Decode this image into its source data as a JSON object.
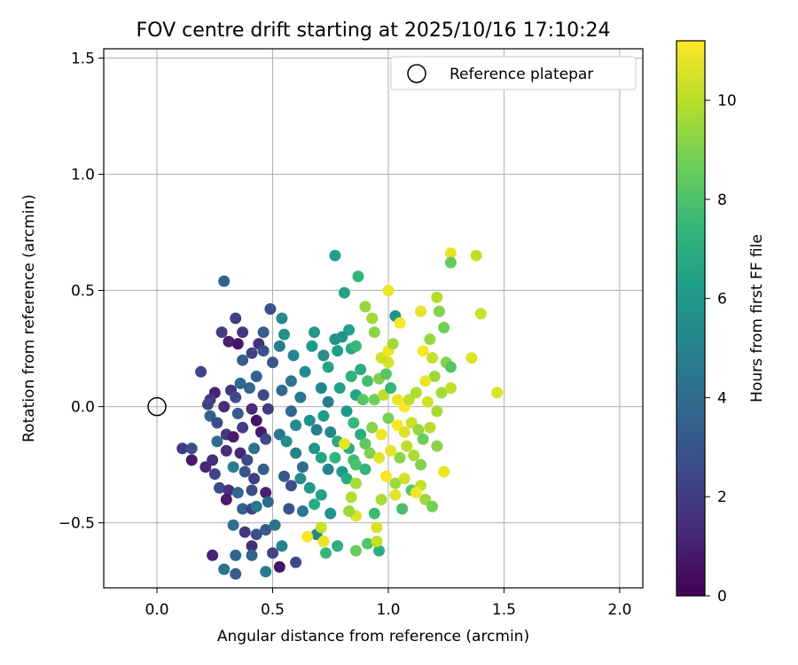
{
  "chart_data": {
    "type": "scatter",
    "title": "FOV centre drift starting at 2025/10/16 17:10:24",
    "xlabel": "Angular distance from reference (arcmin)",
    "ylabel": "Rotation from reference (arcmin)",
    "xlim": [
      -0.23,
      2.1
    ],
    "ylim": [
      -0.78,
      1.54
    ],
    "x_ticks": [
      0.0,
      0.5,
      1.0,
      1.5,
      2.0
    ],
    "x_tick_labels": [
      "0.0",
      "0.5",
      "1.0",
      "1.5",
      "2.0"
    ],
    "y_ticks": [
      -0.5,
      0.0,
      0.5,
      1.0,
      1.5
    ],
    "y_tick_labels": [
      "−0.5",
      "0.0",
      "0.5",
      "1.0",
      "1.5"
    ],
    "grid": true,
    "legend": {
      "position": "top-right",
      "entries": [
        "Reference platepar"
      ]
    },
    "reference_point": {
      "x": 0.0,
      "y": 0.0,
      "label": "Reference platepar"
    },
    "colorbar": {
      "label": "Hours from first FF file",
      "colormap": "viridis",
      "range": [
        0,
        11.2
      ],
      "ticks": [
        0,
        2,
        4,
        6,
        8,
        10
      ],
      "tick_labels": [
        "0",
        "2",
        "4",
        "6",
        "8",
        "10"
      ]
    },
    "colors": {
      "viridis": [
        "#440154",
        "#482878",
        "#3e4989",
        "#31688e",
        "#26828e",
        "#1f9e89",
        "#35b779",
        "#6ece58",
        "#b5de2b",
        "#fde725"
      ]
    },
    "points": [
      [
        0.29,
        0.54,
        3.5
      ],
      [
        0.49,
        0.42,
        2.9
      ],
      [
        0.34,
        0.38,
        2.2
      ],
      [
        0.28,
        0.32,
        2.1
      ],
      [
        0.37,
        0.32,
        1.9
      ],
      [
        0.31,
        0.28,
        1.0
      ],
      [
        0.35,
        0.27,
        0.7
      ],
      [
        0.44,
        0.27,
        1.5
      ],
      [
        0.46,
        0.32,
        3.2
      ],
      [
        0.19,
        0.15,
        2.4
      ],
      [
        0.37,
        0.2,
        3.3
      ],
      [
        0.41,
        0.23,
        2.2
      ],
      [
        0.46,
        0.24,
        2.8
      ],
      [
        0.5,
        0.19,
        3.1
      ],
      [
        0.36,
        0.1,
        3.8
      ],
      [
        0.32,
        0.07,
        1.8
      ],
      [
        0.25,
        0.06,
        1.1
      ],
      [
        0.23,
        0.03,
        1.9
      ],
      [
        0.22,
        0.01,
        2.3
      ],
      [
        0.29,
        0.0,
        1.4
      ],
      [
        0.34,
        0.04,
        2.6
      ],
      [
        0.4,
        0.08,
        3.6
      ],
      [
        0.43,
        0.13,
        3.4
      ],
      [
        0.46,
        0.05,
        2.4
      ],
      [
        0.48,
        -0.01,
        2.0
      ],
      [
        0.23,
        -0.04,
        3.4
      ],
      [
        0.26,
        -0.07,
        2.6
      ],
      [
        0.3,
        -0.12,
        1.8
      ],
      [
        0.35,
        -0.03,
        3.3
      ],
      [
        0.37,
        -0.09,
        2.1
      ],
      [
        0.41,
        -0.01,
        1.4
      ],
      [
        0.43,
        -0.06,
        0.6
      ],
      [
        0.45,
        -0.11,
        0.9
      ],
      [
        0.47,
        -0.14,
        2.6
      ],
      [
        0.26,
        -0.15,
        3.9
      ],
      [
        0.3,
        -0.19,
        1.5
      ],
      [
        0.33,
        -0.13,
        0.8
      ],
      [
        0.36,
        -0.2,
        1.2
      ],
      [
        0.39,
        -0.23,
        2.5
      ],
      [
        0.42,
        -0.18,
        4.2
      ],
      [
        0.11,
        -0.18,
        2.0
      ],
      [
        0.15,
        -0.18,
        2.8
      ],
      [
        0.15,
        -0.23,
        0.7
      ],
      [
        0.21,
        -0.26,
        1.2
      ],
      [
        0.25,
        -0.29,
        2.3
      ],
      [
        0.33,
        -0.26,
        4.8
      ],
      [
        0.24,
        -0.23,
        1.5
      ],
      [
        0.38,
        -0.28,
        3.0
      ],
      [
        0.42,
        -0.31,
        2.1
      ],
      [
        0.46,
        -0.27,
        3.5
      ],
      [
        0.27,
        -0.35,
        2.6
      ],
      [
        0.31,
        -0.36,
        1.7
      ],
      [
        0.35,
        -0.37,
        3.7
      ],
      [
        0.41,
        -0.36,
        2.7
      ],
      [
        0.47,
        -0.37,
        1.0
      ],
      [
        0.3,
        -0.4,
        0.8
      ],
      [
        0.37,
        -0.44,
        3.4
      ],
      [
        0.41,
        -0.44,
        2.2
      ],
      [
        0.43,
        -0.43,
        4.5
      ],
      [
        0.48,
        -0.41,
        3.9
      ],
      [
        0.33,
        -0.51,
        4.0
      ],
      [
        0.38,
        -0.54,
        1.9
      ],
      [
        0.43,
        -0.55,
        2.7
      ],
      [
        0.47,
        -0.53,
        3.2
      ],
      [
        0.51,
        -0.51,
        4.3
      ],
      [
        0.24,
        -0.64,
        1.1
      ],
      [
        0.34,
        -0.64,
        3.6
      ],
      [
        0.41,
        -0.6,
        1.6
      ],
      [
        0.41,
        -0.64,
        3.5
      ],
      [
        0.5,
        -0.63,
        2.3
      ],
      [
        0.29,
        -0.7,
        4.2
      ],
      [
        0.34,
        -0.72,
        3.2
      ],
      [
        0.47,
        -0.71,
        4.6
      ],
      [
        0.53,
        -0.69,
        0.7
      ],
      [
        0.6,
        -0.67,
        2.4
      ],
      [
        0.54,
        -0.6,
        5.0
      ],
      [
        0.54,
        0.38,
        5.4
      ],
      [
        0.55,
        0.31,
        5.6
      ],
      [
        0.59,
        0.22,
        5.0
      ],
      [
        0.53,
        0.26,
        4.7
      ],
      [
        0.58,
        0.11,
        4.2
      ],
      [
        0.54,
        0.07,
        3.9
      ],
      [
        0.62,
        0.04,
        4.6
      ],
      [
        0.58,
        -0.02,
        3.7
      ],
      [
        0.6,
        -0.08,
        5.3
      ],
      [
        0.53,
        -0.12,
        4.4
      ],
      [
        0.56,
        -0.15,
        5.6
      ],
      [
        0.6,
        -0.2,
        4.9
      ],
      [
        0.63,
        -0.26,
        4.0
      ],
      [
        0.55,
        -0.3,
        3.2
      ],
      [
        0.58,
        -0.34,
        2.6
      ],
      [
        0.62,
        -0.31,
        5.5
      ],
      [
        0.66,
        -0.35,
        5.9
      ],
      [
        0.71,
        -0.38,
        6.4
      ],
      [
        0.57,
        -0.44,
        2.9
      ],
      [
        0.63,
        -0.45,
        4.4
      ],
      [
        0.68,
        -0.42,
        6.8
      ],
      [
        0.75,
        -0.46,
        5.7
      ],
      [
        0.69,
        -0.55,
        5.2
      ],
      [
        0.78,
        -0.6,
        7.1
      ],
      [
        0.73,
        -0.63,
        7.4
      ],
      [
        0.64,
        0.15,
        5.4
      ],
      [
        0.67,
        0.26,
        6.1
      ],
      [
        0.72,
        0.22,
        5.5
      ],
      [
        0.68,
        0.32,
        5.9
      ],
      [
        0.74,
        0.17,
        6.5
      ],
      [
        0.77,
        0.29,
        5.6
      ],
      [
        0.78,
        0.24,
        6.3
      ],
      [
        0.71,
        0.08,
        5.1
      ],
      [
        0.74,
        0.02,
        4.8
      ],
      [
        0.79,
        0.08,
        6.4
      ],
      [
        0.66,
        -0.06,
        5.6
      ],
      [
        0.69,
        -0.1,
        4.8
      ],
      [
        0.72,
        -0.04,
        6.2
      ],
      [
        0.75,
        -0.11,
        5.3
      ],
      [
        0.78,
        -0.15,
        6.8
      ],
      [
        0.68,
        -0.18,
        5.8
      ],
      [
        0.71,
        -0.22,
        6.5
      ],
      [
        0.74,
        -0.27,
        5.1
      ],
      [
        0.77,
        -0.22,
        7.2
      ],
      [
        0.8,
        -0.28,
        6.0
      ],
      [
        0.82,
        -0.31,
        6.9
      ],
      [
        0.85,
        -0.23,
        7.6
      ],
      [
        0.77,
        0.65,
        6.2
      ],
      [
        0.81,
        0.49,
        6.4
      ],
      [
        0.87,
        0.56,
        7.3
      ],
      [
        0.83,
        0.33,
        6.3
      ],
      [
        0.8,
        0.3,
        5.8
      ],
      [
        0.84,
        0.25,
        6.7
      ],
      [
        0.86,
        0.26,
        7.5
      ],
      [
        0.9,
        0.43,
        9.4
      ],
      [
        0.93,
        0.38,
        9.6
      ],
      [
        0.94,
        0.32,
        9.2
      ],
      [
        0.88,
        0.16,
        6.8
      ],
      [
        0.91,
        0.11,
        7.8
      ],
      [
        0.84,
        0.13,
        7.2
      ],
      [
        0.86,
        0.05,
        6.5
      ],
      [
        0.89,
        0.03,
        8.2
      ],
      [
        0.82,
        -0.02,
        6.1
      ],
      [
        0.85,
        -0.07,
        7.5
      ],
      [
        0.88,
        -0.12,
        6.9
      ],
      [
        0.9,
        -0.16,
        8.4
      ],
      [
        0.83,
        -0.18,
        7.0
      ],
      [
        0.86,
        -0.25,
        8.0
      ],
      [
        0.9,
        -0.27,
        7.3
      ],
      [
        0.84,
        -0.39,
        9.9
      ],
      [
        0.86,
        -0.47,
        10.6
      ],
      [
        0.83,
        -0.45,
        9.5
      ],
      [
        0.91,
        -0.59,
        8.1
      ],
      [
        0.96,
        -0.62,
        7.0
      ],
      [
        0.86,
        -0.62,
        8.6
      ],
      [
        0.95,
        -0.52,
        10.5
      ],
      [
        0.95,
        -0.58,
        10.2
      ],
      [
        0.94,
        -0.46,
        7.6
      ],
      [
        0.97,
        -0.4,
        9.7
      ],
      [
        0.92,
        -0.2,
        9.0
      ],
      [
        0.96,
        -0.22,
        10.8
      ],
      [
        0.93,
        -0.09,
        9.1
      ],
      [
        0.97,
        -0.12,
        11.0
      ],
      [
        0.94,
        0.03,
        8.7
      ],
      [
        0.98,
        0.05,
        10.1
      ],
      [
        0.96,
        0.12,
        9.0
      ],
      [
        0.99,
        0.14,
        8.3
      ],
      [
        1.0,
        0.19,
        10.5
      ],
      [
        0.97,
        0.21,
        10.4
      ],
      [
        1.0,
        0.24,
        11.0
      ],
      [
        1.02,
        0.27,
        9.6
      ],
      [
        1.03,
        0.39,
        5.8
      ],
      [
        1.05,
        0.36,
        11.1
      ],
      [
        1.0,
        0.5,
        10.9
      ],
      [
        1.01,
        0.08,
        7.4
      ],
      [
        1.04,
        0.03,
        10.9
      ],
      [
        1.07,
        0.0,
        11.2
      ],
      [
        1.09,
        0.03,
        10.1
      ],
      [
        1.12,
        0.06,
        9.8
      ],
      [
        1.0,
        -0.05,
        8.9
      ],
      [
        1.04,
        -0.08,
        11.2
      ],
      [
        1.07,
        -0.11,
        10.6
      ],
      [
        1.1,
        -0.07,
        10.3
      ],
      [
        1.13,
        -0.1,
        9.4
      ],
      [
        1.01,
        -0.19,
        10.8
      ],
      [
        1.05,
        -0.22,
        9.2
      ],
      [
        1.08,
        -0.17,
        10.1
      ],
      [
        1.11,
        -0.21,
        9.8
      ],
      [
        1.14,
        -0.25,
        9.0
      ],
      [
        0.99,
        -0.3,
        11.1
      ],
      [
        1.03,
        -0.33,
        9.6
      ],
      [
        1.07,
        -0.31,
        10.4
      ],
      [
        1.1,
        -0.36,
        8.2
      ],
      [
        1.14,
        -0.34,
        10.2
      ],
      [
        1.03,
        -0.38,
        10.7
      ],
      [
        1.06,
        -0.44,
        7.9
      ],
      [
        1.12,
        -0.37,
        11.0
      ],
      [
        1.16,
        -0.4,
        9.5
      ],
      [
        1.19,
        -0.43,
        8.8
      ],
      [
        1.15,
        0.24,
        11.1
      ],
      [
        1.18,
        0.29,
        9.4
      ],
      [
        1.14,
        0.41,
        10.8
      ],
      [
        1.21,
        0.47,
        9.9
      ],
      [
        1.22,
        0.41,
        9.1
      ],
      [
        1.24,
        0.34,
        8.7
      ],
      [
        1.19,
        0.21,
        10.2
      ],
      [
        1.2,
        0.13,
        9.5
      ],
      [
        1.16,
        0.11,
        10.9
      ],
      [
        1.23,
        0.06,
        9.6
      ],
      [
        1.17,
        0.02,
        10.4
      ],
      [
        1.21,
        -0.02,
        9.7
      ],
      [
        1.18,
        -0.09,
        10.0
      ],
      [
        1.15,
        -0.14,
        8.6
      ],
      [
        1.21,
        -0.17,
        9.2
      ],
      [
        1.27,
        0.66,
        10.8
      ],
      [
        1.27,
        0.62,
        8.5
      ],
      [
        1.38,
        0.65,
        10.1
      ],
      [
        1.4,
        0.4,
        10.3
      ],
      [
        1.25,
        0.19,
        9.1
      ],
      [
        1.27,
        0.17,
        8.2
      ],
      [
        1.27,
        0.08,
        10.1
      ],
      [
        1.36,
        0.21,
        10.7
      ],
      [
        1.47,
        0.06,
        10.6
      ],
      [
        1.24,
        -0.28,
        10.9
      ],
      [
        0.65,
        -0.56,
        11.1
      ],
      [
        0.72,
        -0.58,
        10.9
      ],
      [
        0.71,
        -0.52,
        10.3
      ],
      [
        0.86,
        -0.33,
        9.7
      ],
      [
        0.81,
        -0.16,
        10.8
      ]
    ]
  }
}
